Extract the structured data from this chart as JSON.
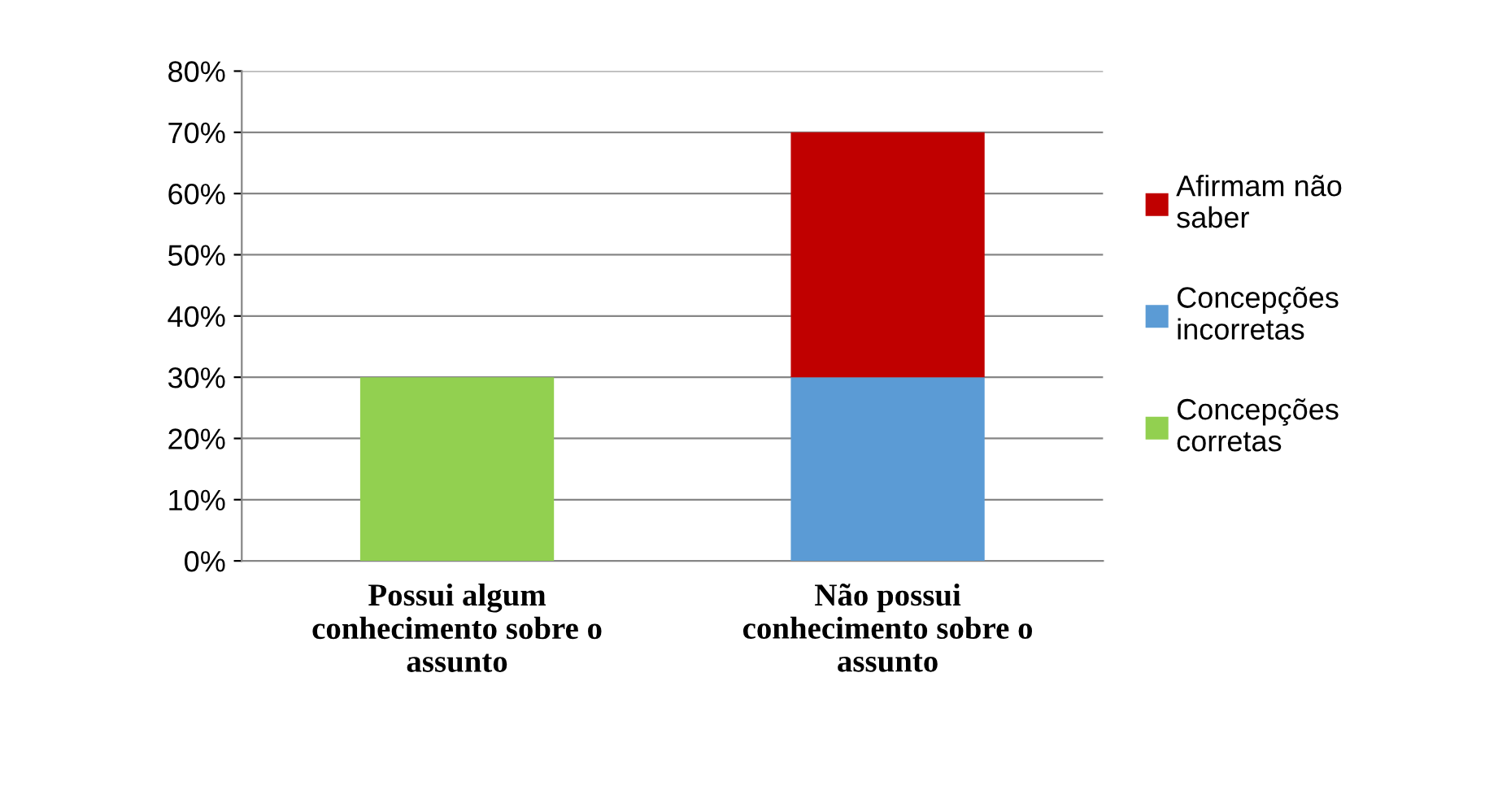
{
  "chart_data": {
    "type": "bar",
    "stacked": true,
    "categories": [
      "Possui algum conhecimento sobre o assunto",
      "Não possui conhecimento sobre o assunto"
    ],
    "series": [
      {
        "name": "Concepções corretas",
        "color": "#92d050",
        "values": [
          30,
          null
        ]
      },
      {
        "name": "Concepções incorretas",
        "color": "#5b9bd5",
        "values": [
          null,
          30
        ]
      },
      {
        "name": "Afirmam não saber",
        "color": "#c00000",
        "values": [
          null,
          40
        ]
      }
    ],
    "ylim": [
      0,
      80
    ],
    "yticks": [
      {
        "value": 0,
        "label": "0%"
      },
      {
        "value": 10,
        "label": "10%"
      },
      {
        "value": 20,
        "label": "20%"
      },
      {
        "value": 30,
        "label": "30%"
      },
      {
        "value": 40,
        "label": "40%"
      },
      {
        "value": 50,
        "label": "50%"
      },
      {
        "value": 60,
        "label": "60%"
      },
      {
        "value": 70,
        "label": "70%"
      },
      {
        "value": 80,
        "label": "80%"
      }
    ],
    "grid": "y",
    "legend": "right"
  }
}
